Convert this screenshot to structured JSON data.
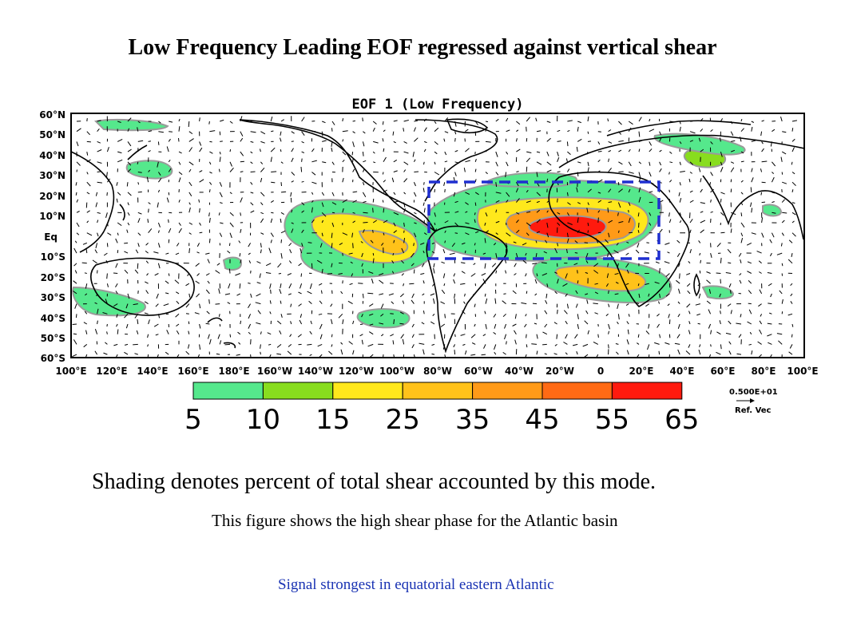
{
  "slide": {
    "title": "Low Frequency Leading EOF regressed against vertical shear",
    "caption": "Shading denotes percent of total shear accounted by this mode.",
    "subcaption": "This figure shows the high shear phase for the Atlantic basin",
    "note": "Signal strongest in equatorial eastern Atlantic"
  },
  "map": {
    "title": "EOF 1 (Low Frequency)",
    "lat_labels": [
      "60°N",
      "50°N",
      "40°N",
      "30°N",
      "20°N",
      "10°N",
      "Eq",
      "10°S",
      "20°S",
      "30°S",
      "40°S",
      "50°S",
      "60°S"
    ],
    "lon_labels": [
      "100°E",
      "120°E",
      "140°E",
      "160°E",
      "180°E",
      "160°W",
      "140°W",
      "120°W",
      "100°W",
      "80°W",
      "60°W",
      "40°W",
      "20°W",
      "0",
      "20°E",
      "40°E",
      "60°E",
      "80°E",
      "100°E"
    ],
    "highlight_box": "Atlantic main development region",
    "ref_vector_value": "0.500E+01",
    "ref_vector_label": "Ref. Vec",
    "colorbar": {
      "labels": [
        "5",
        "10",
        "15",
        "25",
        "35",
        "45",
        "55",
        "65"
      ],
      "colors": [
        "#55e88c",
        "#88dd1e",
        "#ffe81c",
        "#ffc21a",
        "#ff9a18",
        "#ff6a14",
        "#ff1a0e"
      ]
    }
  }
}
